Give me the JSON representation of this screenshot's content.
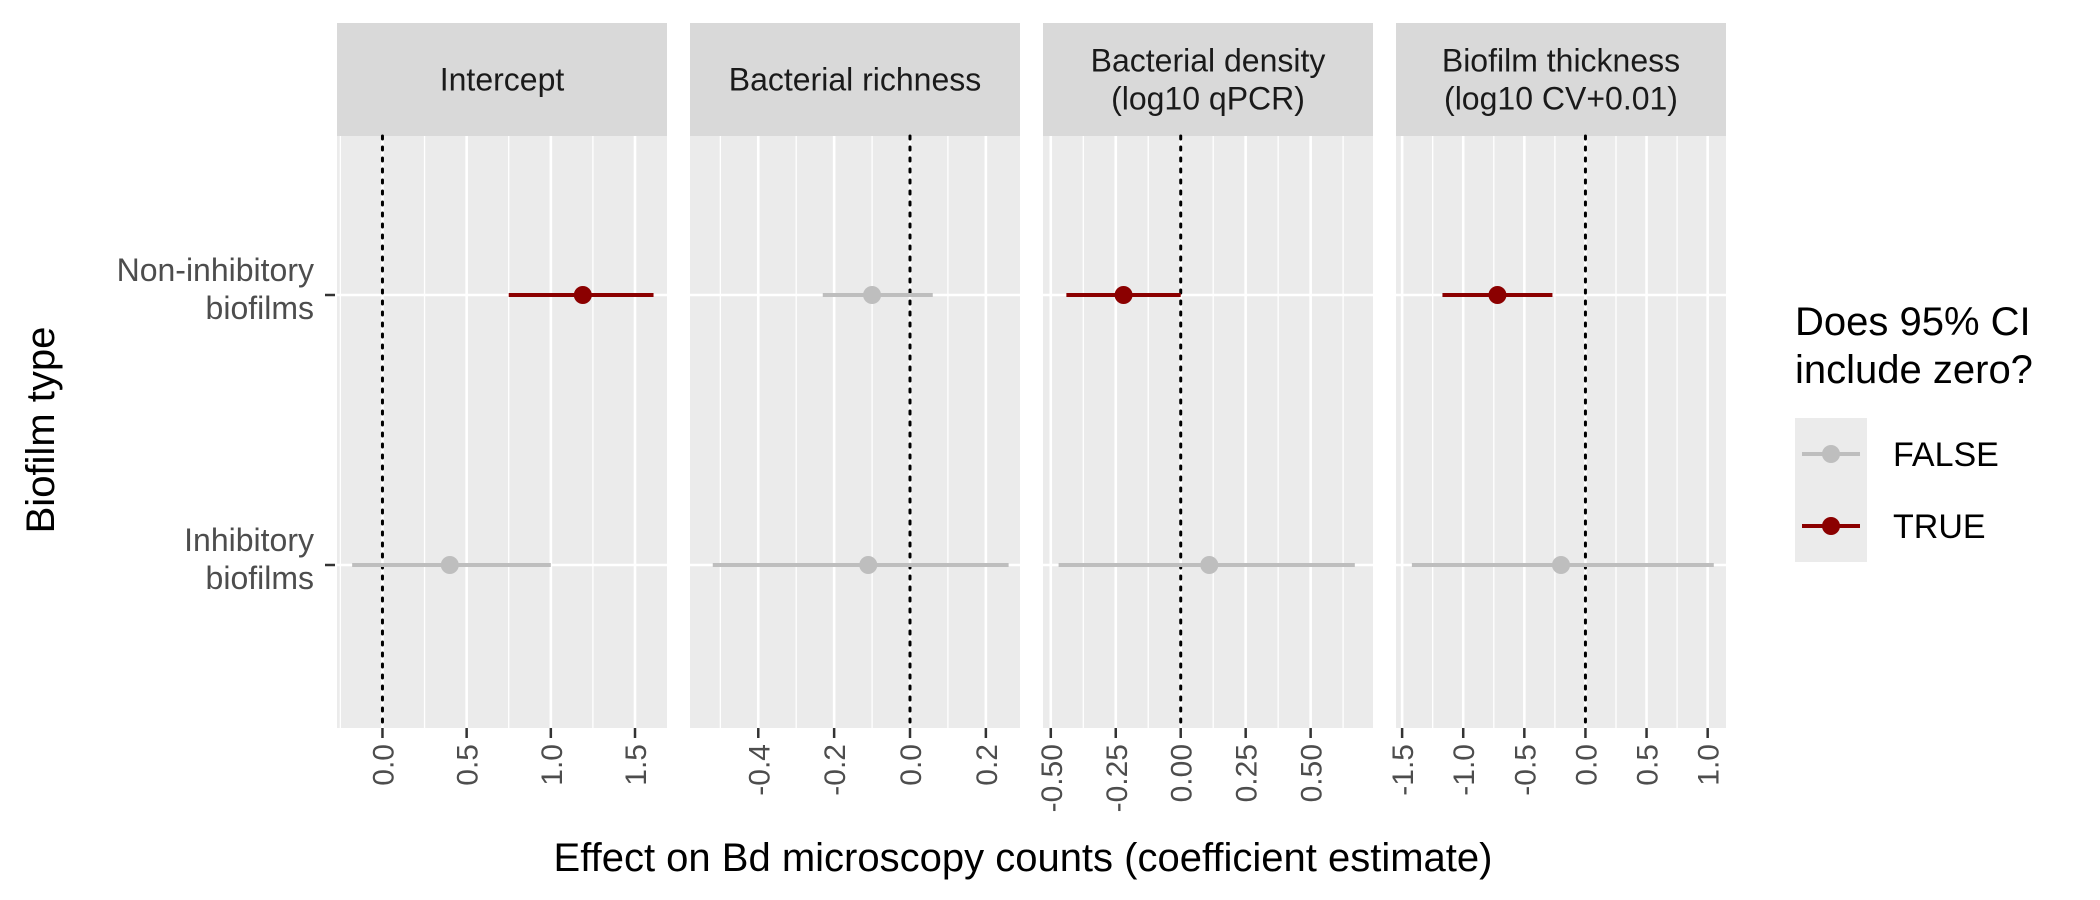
{
  "chart_data": {
    "type": "scatter",
    "xlabel": "Effect on Bd microscopy counts (coefficient estimate)",
    "ylabel": "Biofilm type",
    "y_categories": [
      "Non-inhibitory biofilms",
      "Inhibitory biofilms"
    ],
    "y_category_lines": [
      [
        "Non-inhibitory",
        "biofilms"
      ],
      [
        "Inhibitory",
        "biofilms"
      ]
    ],
    "legend": {
      "title_lines": [
        "Does 95% CI",
        " include zero?"
      ],
      "placement": "right",
      "entries": [
        {
          "label": "FALSE",
          "color": "#bebebe"
        },
        {
          "label": "TRUE",
          "color": "#8b0000"
        }
      ]
    },
    "colors": {
      "FALSE": "#bebebe",
      "TRUE": "#8b0000"
    },
    "reference_line": 0,
    "grid": true,
    "facets": [
      {
        "title_lines": [
          "Intercept"
        ],
        "xlim": [
          -0.27,
          1.69
        ],
        "ticks": [
          0.0,
          0.5,
          1.0,
          1.5
        ],
        "tick_labels": [
          "0.0",
          "0.5",
          "1.0",
          "1.5"
        ],
        "points": [
          {
            "category": "Non-inhibitory biofilms",
            "estimate": 1.19,
            "lower": 0.75,
            "upper": 1.61,
            "significant": "TRUE"
          },
          {
            "category": "Inhibitory biofilms",
            "estimate": 0.4,
            "lower": -0.18,
            "upper": 1.0,
            "significant": "FALSE"
          }
        ]
      },
      {
        "title_lines": [
          "Bacterial richness"
        ],
        "xlim": [
          -0.58,
          0.29
        ],
        "ticks": [
          -0.4,
          -0.2,
          0.0,
          0.2
        ],
        "tick_labels": [
          "-0.4",
          "-0.2",
          "0.0",
          "0.2"
        ],
        "points": [
          {
            "category": "Non-inhibitory biofilms",
            "estimate": -0.1,
            "lower": -0.23,
            "upper": 0.06,
            "significant": "FALSE"
          },
          {
            "category": "Inhibitory biofilms",
            "estimate": -0.11,
            "lower": -0.52,
            "upper": 0.26,
            "significant": "FALSE"
          }
        ]
      },
      {
        "title_lines": [
          "Bacterial density",
          "(log10 qPCR)"
        ],
        "xlim": [
          -0.53,
          0.74
        ],
        "ticks": [
          -0.5,
          -0.25,
          0.0,
          0.25,
          0.5
        ],
        "tick_labels": [
          "-0.50",
          "-0.25",
          "0.00",
          "0.25",
          "0.50"
        ],
        "points": [
          {
            "category": "Non-inhibitory biofilms",
            "estimate": -0.22,
            "lower": -0.44,
            "upper": 0.0,
            "significant": "TRUE"
          },
          {
            "category": "Inhibitory biofilms",
            "estimate": 0.11,
            "lower": -0.47,
            "upper": 0.67,
            "significant": "FALSE"
          }
        ]
      },
      {
        "title_lines": [
          "Biofilm thickness",
          "(log10 CV+0.01)"
        ],
        "xlim": [
          -1.55,
          1.15
        ],
        "ticks": [
          -1.5,
          -1.0,
          -0.5,
          0.0,
          0.5,
          1.0
        ],
        "tick_labels": [
          "-1.5",
          "-1.0",
          "-0.5",
          "0.0",
          "0.5",
          "1.0"
        ],
        "points": [
          {
            "category": "Non-inhibitory biofilms",
            "estimate": -0.72,
            "lower": -1.17,
            "upper": -0.27,
            "significant": "TRUE"
          },
          {
            "category": "Inhibitory biofilms",
            "estimate": -0.2,
            "lower": -1.42,
            "upper": 1.05,
            "significant": "FALSE"
          }
        ]
      }
    ]
  }
}
